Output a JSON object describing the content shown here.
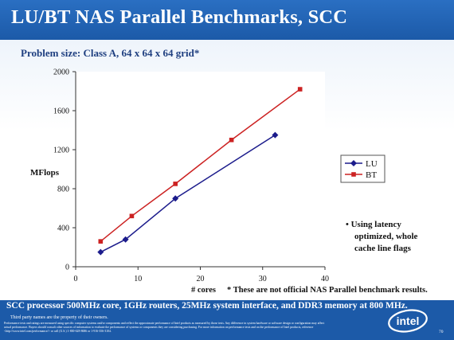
{
  "slide": {
    "title": "LU/BT NAS Parallel Benchmarks, SCC",
    "subtitle": "Problem size: Class A, 64 x 64 x 64 grid*",
    "bullet_first": "Using latency",
    "bullet_rest": "optimized, whole cache line flags",
    "note_cores": "# cores",
    "note_text": "* These are not official NAS Parallel benchmark results.",
    "bottom_main": "SCC processor 500MHz core, 1GHz routers, 25MHz system interface, and DDR3 memory at 800 MHz.",
    "bottom_third_party": "Third party names are the property of their owners.",
    "bottom_fine": "Performance tests and ratings are measured using specific computer systems and/or components and reflect the approximate performance of Intel products as measured by those tests. Any difference in system hardware or software design or configuration may affect actual performance. Buyers should consult other sources of information to evaluate the performance of systems or components they are considering purchasing. For more information on performance tests and on the performance of Intel products, reference <http://www.intel.com/performance/> or call (U.S.) 1-800-628-8686 or 1-916-356-3104.",
    "logo_text": "intel",
    "page_number": "70"
  },
  "chart_data": {
    "type": "line",
    "title": "",
    "ylabel": "MFlops",
    "xlabel": "",
    "xlim": [
      0,
      40
    ],
    "ylim": [
      0,
      2000
    ],
    "x_ticks": [
      0,
      10,
      20,
      30,
      40
    ],
    "y_ticks": [
      0,
      400,
      800,
      1200,
      1600,
      2000
    ],
    "grid": false,
    "legend_position": "right",
    "series": [
      {
        "name": "LU",
        "color": "#1c1c8c",
        "marker": "diamond",
        "x": [
          4,
          8,
          16,
          32
        ],
        "y": [
          150,
          280,
          700,
          1350
        ]
      },
      {
        "name": "BT",
        "color": "#cc2222",
        "marker": "square",
        "x": [
          4,
          9,
          16,
          25,
          36
        ],
        "y": [
          260,
          520,
          850,
          1300,
          1820
        ]
      }
    ]
  }
}
